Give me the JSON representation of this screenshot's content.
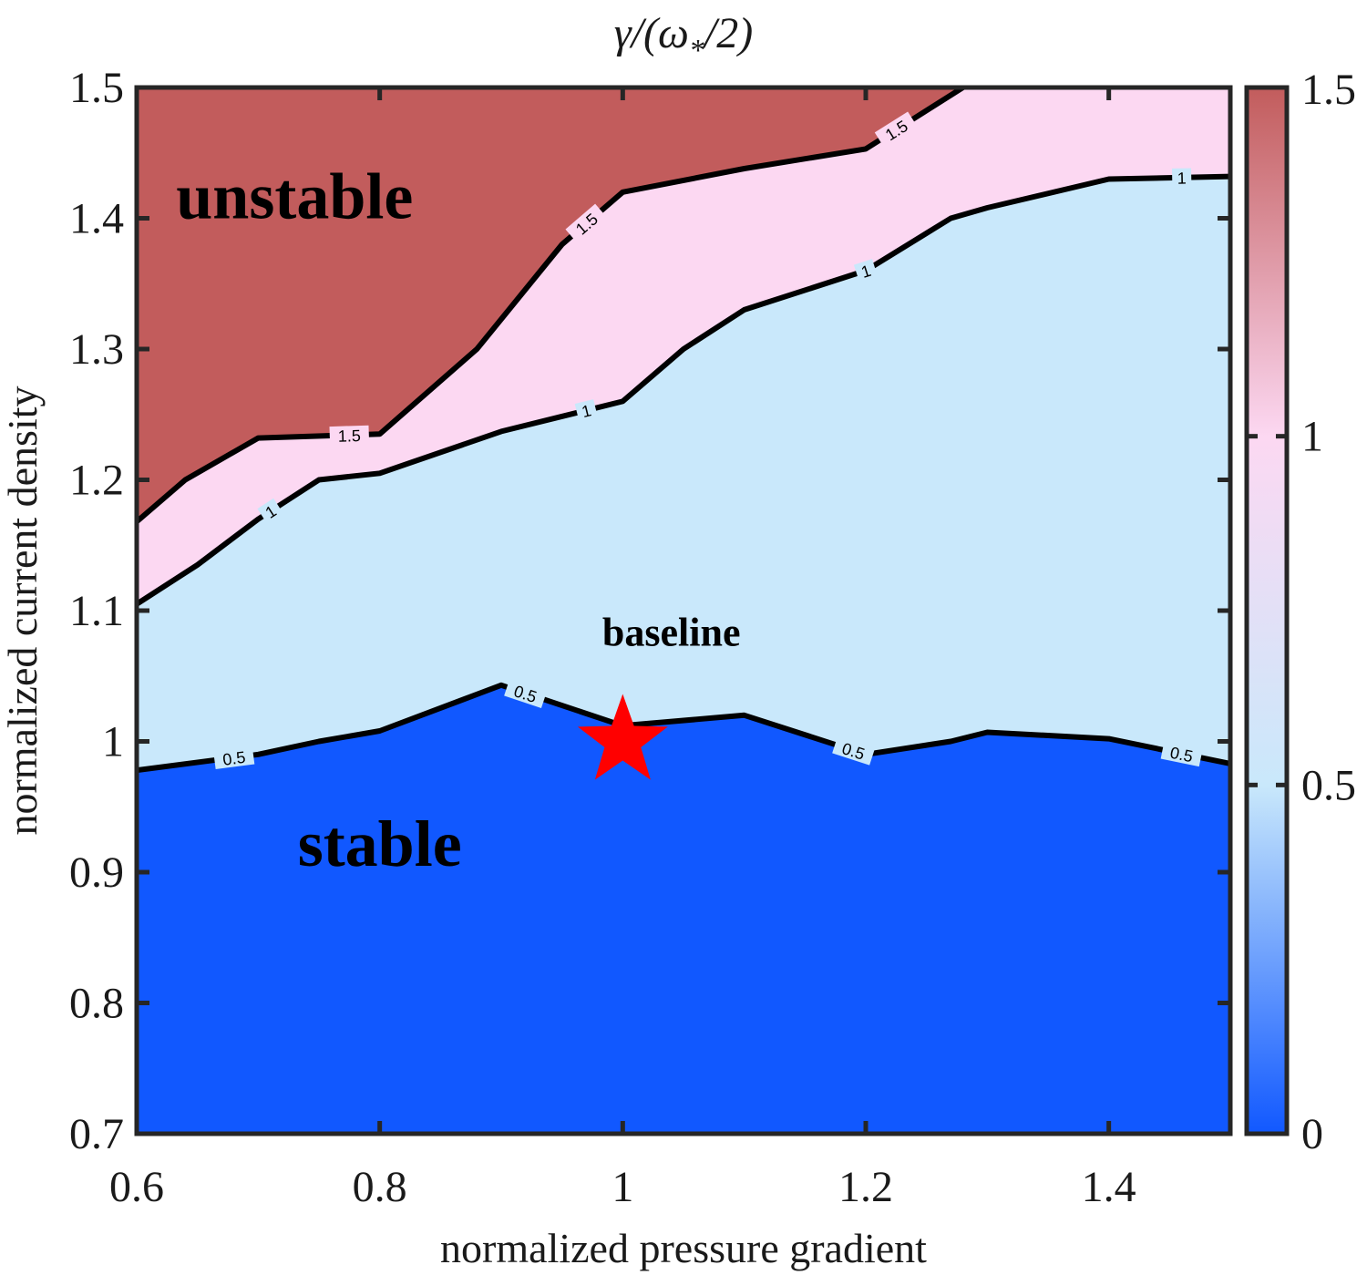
{
  "chart_data": {
    "type": "contour",
    "title": "γ/(ω*/2)",
    "xlabel": "normalized pressure gradient",
    "ylabel": "normalized current density",
    "xlim": [
      0.6,
      1.5
    ],
    "ylim": [
      0.7,
      1.5
    ],
    "x_ticks": [
      "0.6",
      "0.8",
      "1",
      "1.2",
      "1.4"
    ],
    "x_tick_values": [
      0.6,
      0.8,
      1.0,
      1.2,
      1.4
    ],
    "y_ticks": [
      "0.7",
      "0.8",
      "0.9",
      "1",
      "1.1",
      "1.2",
      "1.3",
      "1.4",
      "1.5"
    ],
    "y_tick_values": [
      0.7,
      0.8,
      0.9,
      1.0,
      1.1,
      1.2,
      1.3,
      1.4,
      1.5
    ],
    "colorbar": {
      "range": [
        0,
        1.5
      ],
      "ticks": [
        "0",
        "0.5",
        "1",
        "1.5"
      ],
      "tick_values": [
        0,
        0.5,
        1.0,
        1.5
      ],
      "colors": {
        "0": "#1158ff",
        "0.5": "#c9e8fb",
        "1": "#fcd8f2",
        "1.5": "#c25c5c"
      }
    },
    "levels": [
      {
        "level": 0.5,
        "label": "0.5",
        "fill_below": "#1158ff",
        "points": [
          [
            0.6,
            0.978
          ],
          [
            0.7,
            0.99
          ],
          [
            0.75,
            1.0
          ],
          [
            0.8,
            1.008
          ],
          [
            0.9,
            1.043
          ],
          [
            1.0,
            1.012
          ],
          [
            1.1,
            1.02
          ],
          [
            1.2,
            0.99
          ],
          [
            1.27,
            1.0
          ],
          [
            1.3,
            1.007
          ],
          [
            1.4,
            1.002
          ],
          [
            1.5,
            0.983
          ]
        ],
        "label_x": [
          0.68,
          0.92,
          1.19,
          1.46
        ]
      },
      {
        "level": 1.0,
        "label": "1",
        "fill_below": "#c9e8fb",
        "points": [
          [
            0.6,
            1.105
          ],
          [
            0.65,
            1.135
          ],
          [
            0.7,
            1.17
          ],
          [
            0.75,
            1.2
          ],
          [
            0.8,
            1.205
          ],
          [
            0.9,
            1.237
          ],
          [
            1.0,
            1.26
          ],
          [
            1.05,
            1.3
          ],
          [
            1.1,
            1.33
          ],
          [
            1.2,
            1.36
          ],
          [
            1.27,
            1.4
          ],
          [
            1.3,
            1.408
          ],
          [
            1.4,
            1.43
          ],
          [
            1.5,
            1.432
          ]
        ],
        "label_x": [
          0.71,
          0.97,
          1.2,
          1.46
        ]
      },
      {
        "level": 1.5,
        "label": "1.5",
        "fill_below": "#fcd8f2",
        "points": [
          [
            0.6,
            1.168
          ],
          [
            0.64,
            1.2
          ],
          [
            0.7,
            1.232
          ],
          [
            0.8,
            1.235
          ],
          [
            0.88,
            1.3
          ],
          [
            0.95,
            1.38
          ],
          [
            1.0,
            1.42
          ],
          [
            1.1,
            1.438
          ],
          [
            1.2,
            1.453
          ],
          [
            1.28,
            1.5
          ]
        ],
        "label_x": [
          0.775,
          0.97,
          1.225
        ]
      }
    ],
    "fill_above_top": "#c25c5c",
    "marker": {
      "shape": "star",
      "color": "#ff0000",
      "x": 1.0,
      "y": 1.0
    },
    "annotations": [
      {
        "text": "unstable",
        "x": 0.73,
        "y": 1.4,
        "size": "large"
      },
      {
        "text": "baseline",
        "x": 1.04,
        "y": 1.073,
        "size": "small"
      },
      {
        "text": "stable",
        "x": 0.8,
        "y": 0.905,
        "size": "large"
      }
    ]
  }
}
